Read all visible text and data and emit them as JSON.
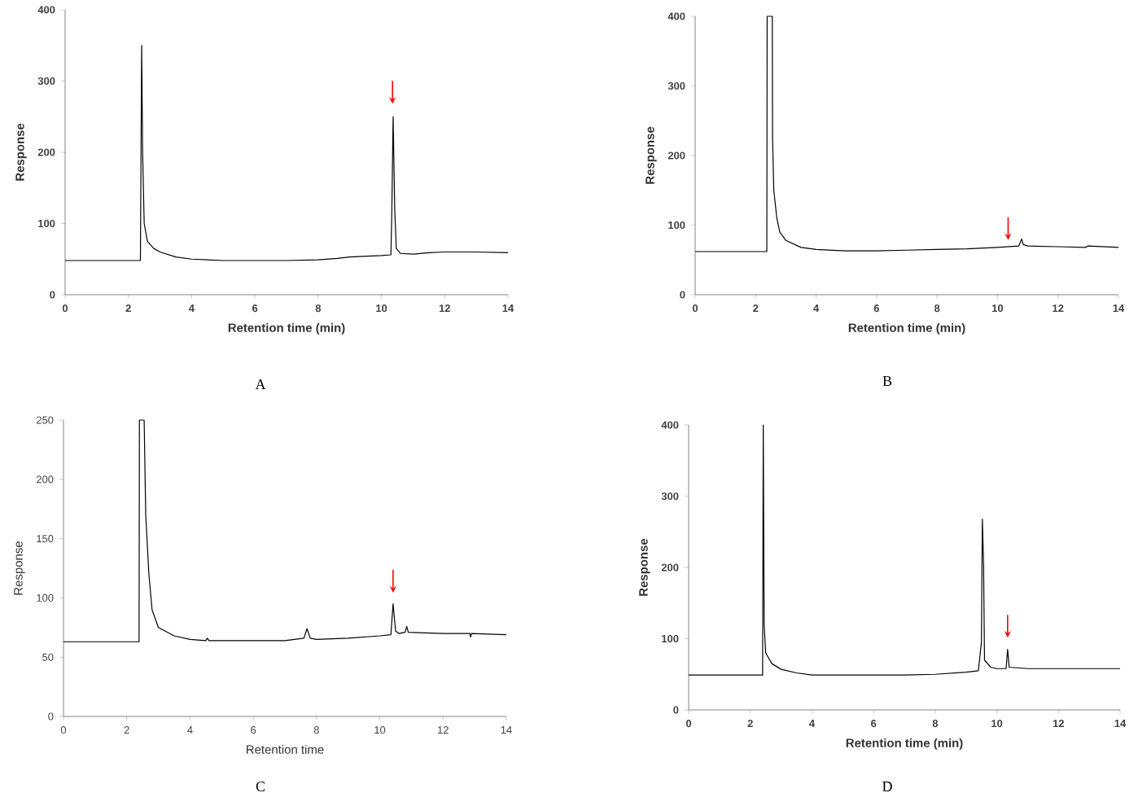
{
  "chart_data": [
    {
      "type": "line",
      "title": "A",
      "xlabel": "Retention time (min)",
      "ylabel": "Response",
      "xlim": [
        0,
        14
      ],
      "ylim": [
        0,
        400
      ],
      "xticks": [
        0,
        2,
        4,
        6,
        8,
        10,
        12,
        14
      ],
      "yticks": [
        0,
        100,
        200,
        300,
        400
      ],
      "color": "#000000",
      "x": [
        0,
        2.38,
        2.42,
        2.45,
        2.5,
        2.6,
        2.8,
        3,
        3.5,
        4,
        5,
        6,
        7,
        8,
        8.6,
        9,
        10,
        10.3,
        10.33,
        10.37,
        10.42,
        10.47,
        10.6,
        11,
        11.5,
        12,
        13,
        14
      ],
      "values": [
        48,
        48,
        350,
        200,
        100,
        75,
        65,
        60,
        53,
        50,
        48,
        48,
        48,
        49,
        51,
        53,
        55,
        56,
        120,
        250,
        120,
        65,
        58,
        57,
        59,
        60,
        60,
        59
      ]
    },
    {
      "type": "line",
      "title": "B",
      "xlabel": "Retention time (min)",
      "ylabel": "Response",
      "xlim": [
        0,
        14
      ],
      "ylim": [
        0,
        400
      ],
      "xticks": [
        0,
        2,
        4,
        6,
        8,
        10,
        12,
        14
      ],
      "yticks": [
        0,
        100,
        200,
        300,
        400
      ],
      "color": "#000000",
      "x": [
        0,
        2.37,
        2.38,
        2.55,
        2.56,
        2.6,
        2.7,
        2.8,
        3,
        3.5,
        4,
        5,
        6,
        7,
        8,
        9,
        10,
        10.7,
        10.8,
        10.85,
        11,
        12,
        12.9,
        13,
        14
      ],
      "values": [
        62,
        62,
        400,
        400,
        225,
        150,
        110,
        90,
        78,
        68,
        65,
        63,
        63,
        64,
        65,
        66,
        68,
        70,
        80,
        72,
        70,
        69,
        68,
        70,
        68
      ]
    },
    {
      "type": "line",
      "title": "C",
      "xlabel": "Retention time",
      "ylabel": "Response",
      "xlim": [
        0,
        14
      ],
      "ylim": [
        0,
        250
      ],
      "xticks": [
        0,
        2,
        4,
        6,
        8,
        10,
        12,
        14
      ],
      "yticks": [
        0,
        50,
        100,
        150,
        200,
        250
      ],
      "color": "#000000",
      "x": [
        0,
        2.39,
        2.4,
        2.55,
        2.6,
        2.7,
        2.8,
        3,
        3.5,
        4,
        4.5,
        4.55,
        4.6,
        6,
        7,
        7.6,
        7.7,
        7.8,
        8,
        9,
        10,
        10.35,
        10.42,
        10.5,
        10.6,
        10.8,
        10.85,
        10.9,
        12,
        12.85,
        12.87,
        12.9,
        14
      ],
      "values": [
        63,
        63,
        250,
        250,
        170,
        120,
        90,
        75,
        68,
        65,
        64,
        66,
        64,
        64,
        64,
        66,
        74,
        66,
        65,
        66,
        68,
        69,
        95,
        72,
        70,
        71,
        76,
        71,
        70,
        70,
        67,
        70,
        69
      ]
    },
    {
      "type": "line",
      "title": "D",
      "xlabel": "Retention time (min)",
      "ylabel": "Response",
      "xlim": [
        0,
        14
      ],
      "ylim": [
        0,
        400
      ],
      "xticks": [
        0,
        2,
        4,
        6,
        8,
        10,
        12,
        14
      ],
      "yticks": [
        0,
        100,
        200,
        300,
        400
      ],
      "color": "#000000",
      "x": [
        0,
        2.4,
        2.42,
        2.45,
        2.5,
        2.7,
        3,
        3.5,
        4,
        5,
        7,
        8,
        9,
        9.4,
        9.5,
        9.53,
        9.57,
        9.6,
        9.8,
        10,
        10.3,
        10.35,
        10.4,
        11,
        12,
        14
      ],
      "values": [
        49,
        49,
        400,
        120,
        80,
        65,
        57,
        52,
        49,
        49,
        49,
        50,
        53,
        55,
        95,
        268,
        205,
        70,
        60,
        58,
        58,
        85,
        60,
        58,
        58,
        58
      ]
    }
  ]
}
